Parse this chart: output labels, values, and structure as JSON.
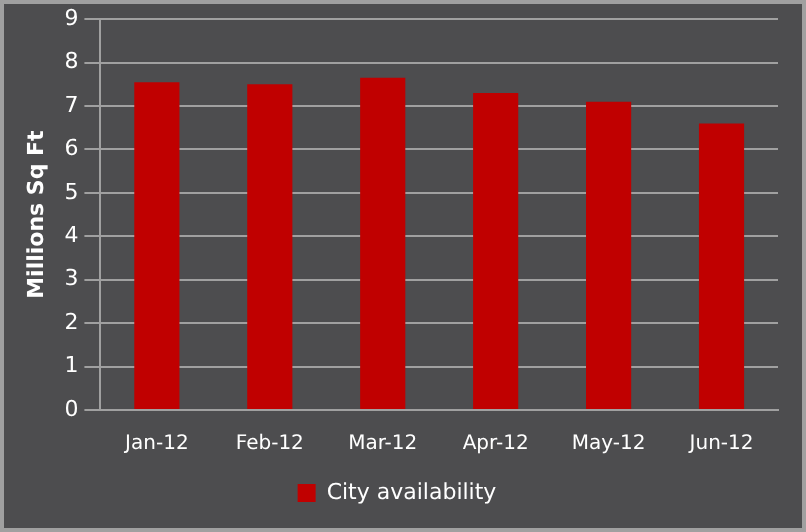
{
  "chart_data": {
    "type": "bar",
    "ylabel": "Millions Sq Ft",
    "categories": [
      "Jan-12",
      "Feb-12",
      "Mar-12",
      "Apr-12",
      "May-12",
      "Jun-12"
    ],
    "series": [
      {
        "name": "City availability",
        "color": "#c00000",
        "values": [
          7.55,
          7.5,
          7.65,
          7.3,
          7.1,
          6.6
        ]
      }
    ],
    "ylim": [
      0,
      9
    ],
    "yticks": [
      0,
      1,
      2,
      3,
      4,
      5,
      6,
      7,
      8,
      9
    ],
    "grid": "y",
    "legend": "bottom"
  }
}
